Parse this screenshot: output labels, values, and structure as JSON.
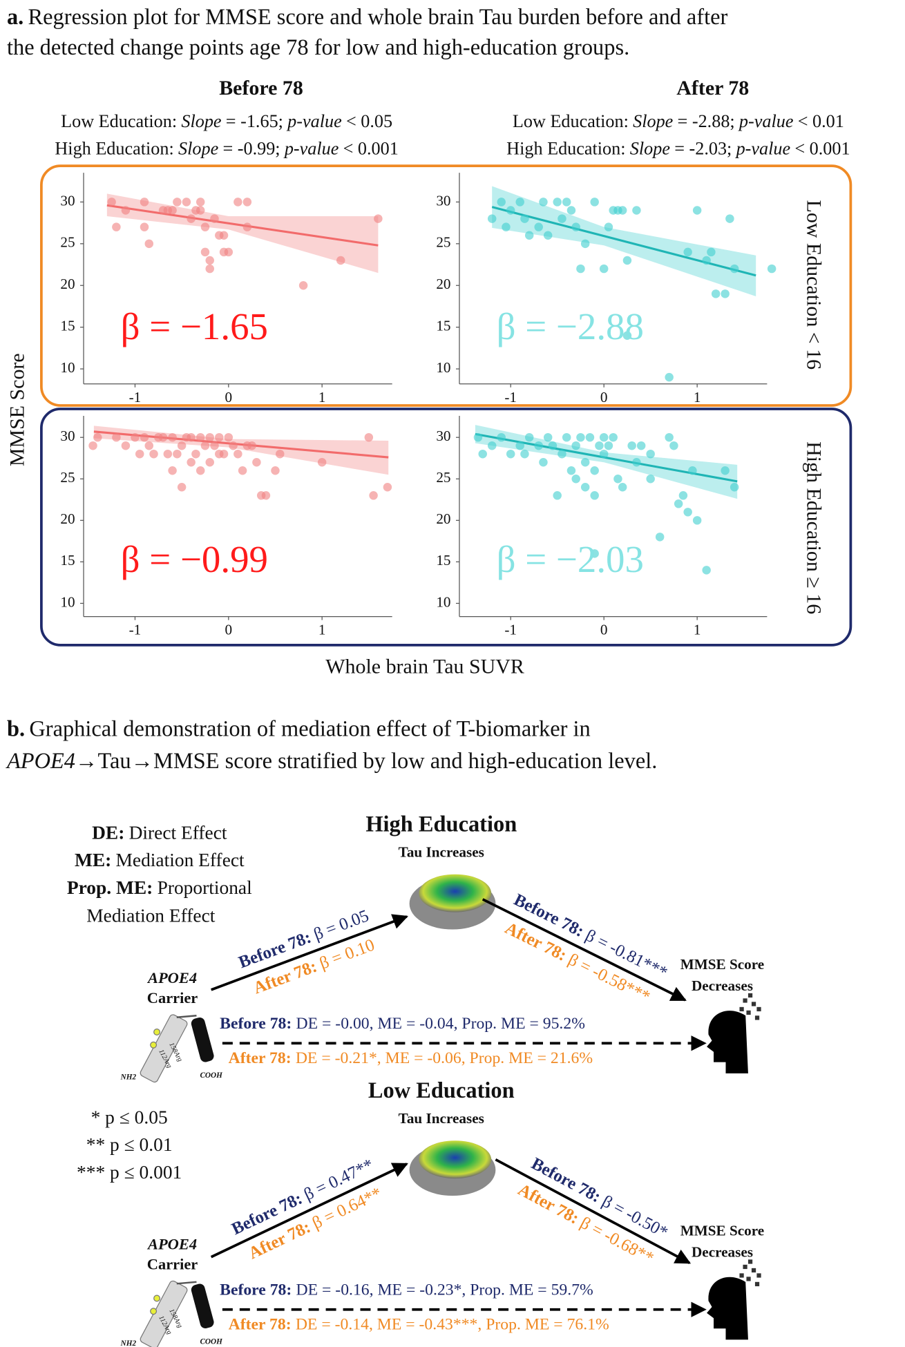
{
  "panel_a": {
    "label": "a.",
    "caption": [
      "Regression plot for MMSE score and whole brain Tau burden before and after",
      "the detected change points age 78 for low and high-education groups."
    ],
    "columns": [
      {
        "title": "Before 78",
        "stats": [
          [
            "Low Education:",
            "Slope",
            "= -1.65;",
            "p-value",
            "< 0.05"
          ],
          [
            "High Education:",
            "Slope",
            "= -0.99;",
            "p-value",
            "< 0.001"
          ]
        ]
      },
      {
        "title": "After 78",
        "stats": [
          [
            "Low Education:",
            "Slope",
            "= -2.88;",
            "p-value",
            "< 0.01"
          ],
          [
            "High Education:",
            "Slope",
            "= -2.03;",
            "p-value",
            "< 0.001"
          ]
        ]
      }
    ],
    "rows": [
      "Low Education < 16",
      "High Education ≥ 16"
    ],
    "y_label": "MMSE Score",
    "x_label": "Whole brain Tau SUVR"
  },
  "chart_data": [
    {
      "type": "scatter",
      "color": "#f08080",
      "line_color": "#f26b6b",
      "annotation": "β = −1.65",
      "annotation_color": "#ff1a1a",
      "xlim": [
        -1.55,
        1.75
      ],
      "ylim": [
        8.2,
        33.5
      ],
      "xticks": [
        -1,
        0,
        1
      ],
      "yticks": [
        10,
        15,
        20,
        25,
        30
      ],
      "x": [
        -1.25,
        -1.2,
        -1.1,
        -0.9,
        -0.9,
        -0.85,
        -0.7,
        -0.65,
        -0.6,
        -0.55,
        -0.45,
        -0.4,
        -0.35,
        -0.3,
        -0.3,
        -0.25,
        -0.25,
        -0.2,
        -0.2,
        -0.15,
        -0.1,
        -0.05,
        -0.05,
        0,
        0.1,
        0.2,
        0.2,
        0.8,
        1.2,
        1.6
      ],
      "values": [
        30,
        27,
        29,
        30,
        27,
        25,
        29,
        29,
        29,
        30,
        30,
        28,
        29,
        29,
        30,
        27,
        24,
        23,
        22,
        28,
        26,
        26,
        24,
        24,
        30,
        30,
        27,
        20,
        23,
        28
      ],
      "fit": {
        "x": [
          -1.3,
          1.6
        ],
        "values": [
          29.6,
          24.8
        ]
      },
      "band": {
        "x": [
          -1.3,
          0,
          1.6
        ],
        "lower": [
          28.3,
          26.7,
          21.5
        ],
        "upper": [
          31,
          28.3,
          28.3
        ]
      }
    },
    {
      "type": "scatter",
      "color": "#3fcfcf",
      "line_color": "#1fb5b5",
      "annotation": "β = −2.88",
      "annotation_color": "#86e3e3",
      "xlim": [
        -1.55,
        1.75
      ],
      "ylim": [
        8.2,
        33.5
      ],
      "xticks": [
        -1,
        0,
        1
      ],
      "yticks": [
        10,
        15,
        20,
        25,
        30
      ],
      "x": [
        -1.2,
        -1.1,
        -1.05,
        -1,
        -0.9,
        -0.85,
        -0.8,
        -0.7,
        -0.65,
        -0.6,
        -0.5,
        -0.45,
        -0.4,
        -0.35,
        -0.3,
        -0.25,
        -0.2,
        -0.1,
        0,
        0.05,
        0.1,
        0.15,
        0.2,
        0.25,
        0.25,
        0.35,
        0.7,
        0.9,
        1,
        1.1,
        1.15,
        1.2,
        1.3,
        1.35,
        1.4,
        1.8
      ],
      "values": [
        28,
        30,
        27,
        29,
        30,
        28,
        26,
        27,
        30,
        26,
        30,
        28,
        30,
        29,
        27,
        22,
        25,
        30,
        22,
        27,
        29,
        29,
        29,
        14,
        23,
        29,
        9,
        24,
        29,
        23,
        24,
        19,
        19,
        28,
        22,
        22
      ],
      "fit": {
        "x": [
          -1.2,
          1.63
        ],
        "values": [
          29.4,
          21.2
        ]
      },
      "band": {
        "x": [
          -1.2,
          0,
          1.63
        ],
        "lower": [
          26.9,
          24.8,
          18.7
        ],
        "upper": [
          31.9,
          27,
          23.6
        ]
      }
    },
    {
      "type": "scatter",
      "color": "#f08080",
      "line_color": "#f26b6b",
      "annotation": "β = −0.99",
      "annotation_color": "#ff1a1a",
      "xlim": [
        -1.55,
        1.75
      ],
      "ylim": [
        8.4,
        32.6
      ],
      "xticks": [
        -1,
        0,
        1
      ],
      "yticks": [
        10,
        15,
        20,
        25,
        30
      ],
      "x": [
        -1.45,
        -1.4,
        -1.2,
        -1.1,
        -1.0,
        -0.95,
        -0.9,
        -0.85,
        -0.8,
        -0.75,
        -0.7,
        -0.65,
        -0.6,
        -0.6,
        -0.55,
        -0.5,
        -0.5,
        -0.45,
        -0.4,
        -0.4,
        -0.35,
        -0.3,
        -0.3,
        -0.25,
        -0.2,
        -0.2,
        -0.15,
        -0.1,
        -0.1,
        -0.05,
        0,
        0.05,
        0.1,
        0.15,
        0.2,
        0.25,
        0.3,
        0.35,
        0.4,
        0.5,
        0.55,
        1.0,
        1.5,
        1.55,
        1.7
      ],
      "values": [
        29,
        30,
        30,
        29,
        30,
        28,
        30,
        29,
        28,
        30,
        30,
        28,
        30,
        26,
        28,
        29,
        24,
        30,
        30,
        27,
        28,
        30,
        26,
        29,
        30,
        27,
        29,
        28,
        30,
        28,
        30,
        29,
        28,
        26,
        29,
        29,
        27,
        23,
        23,
        26,
        28,
        27,
        30,
        23,
        24
      ],
      "fit": {
        "x": [
          -1.44,
          1.71
        ],
        "values": [
          30.7,
          27.6
        ]
      },
      "band": {
        "x": [
          -1.44,
          0,
          1.71
        ],
        "lower": [
          29.9,
          28.8,
          25.5
        ],
        "upper": [
          31.4,
          29.8,
          29.6
        ]
      }
    },
    {
      "type": "scatter",
      "color": "#3fcfcf",
      "line_color": "#1fb5b5",
      "annotation": "β = −2.03",
      "annotation_color": "#86e3e3",
      "xlim": [
        -1.55,
        1.75
      ],
      "ylim": [
        8.4,
        32.6
      ],
      "xticks": [
        -1,
        0,
        1
      ],
      "yticks": [
        10,
        15,
        20,
        25,
        30
      ],
      "x": [
        -1.35,
        -1.3,
        -1.2,
        -1.1,
        -1.0,
        -0.9,
        -0.85,
        -0.8,
        -0.7,
        -0.65,
        -0.6,
        -0.55,
        -0.5,
        -0.45,
        -0.4,
        -0.35,
        -0.3,
        -0.3,
        -0.25,
        -0.2,
        -0.2,
        -0.15,
        -0.1,
        -0.1,
        -0.05,
        0,
        0,
        0.05,
        0.1,
        0.15,
        0.2,
        0.3,
        0.35,
        0.4,
        0.5,
        0.6,
        0.7,
        0.75,
        0.8,
        0.85,
        0.9,
        0.95,
        1.0,
        1.1,
        1.3,
        1.4,
        -0.1,
        0.5
      ],
      "values": [
        30,
        28,
        29,
        30,
        28,
        29,
        28,
        30,
        29,
        27,
        30,
        29,
        23,
        28,
        30,
        26,
        29,
        25,
        30,
        27,
        24,
        30,
        26,
        16,
        29,
        30,
        28,
        29,
        30,
        25,
        24,
        29,
        27,
        29,
        28,
        18,
        30,
        29,
        22,
        23,
        21,
        26,
        20,
        14,
        26,
        24,
        23,
        25
      ],
      "fit": {
        "x": [
          -1.38,
          1.43
        ],
        "values": [
          30.4,
          24.7
        ]
      },
      "band": {
        "x": [
          -1.38,
          0,
          1.43
        ],
        "lower": [
          29.3,
          27,
          22.6
        ],
        "upper": [
          31.5,
          28.2,
          26.7
        ]
      }
    }
  ],
  "panel_b": {
    "label": "b.",
    "caption_line1": "Graphical  demonstration of mediation effect of T-biomarker in",
    "caption_line2": [
      "APOE4",
      "→Tau→MMSE  score stratified by low and high-education level."
    ],
    "legend": [
      [
        "DE:",
        "Direct Effect"
      ],
      [
        "ME:",
        "Mediation Effect"
      ],
      [
        "Prop. ME:",
        "Proportional"
      ]
    ],
    "legend_cont": "Mediation Effect",
    "significance": [
      "* p ≤ 0.05",
      "** p ≤ 0.01",
      "*** p ≤ 0.001"
    ],
    "groups": [
      {
        "title": "High Education",
        "subtitle": "Tau Increases",
        "source": [
          "APOE4",
          "Carrier"
        ],
        "target": [
          "MMSE Score",
          "Decreases"
        ],
        "protein_labels": [
          "NH2",
          "COOH",
          "158Arg",
          "112Arg"
        ],
        "to_tau": [
          [
            "Before 78:",
            "β = 0.05"
          ],
          [
            "After 78:",
            "β = 0.10"
          ]
        ],
        "to_mmse": [
          [
            "Before 78:",
            "β = -0.81***"
          ],
          [
            "After 78:",
            "β = -0.58***"
          ]
        ],
        "direct": [
          [
            "Before 78:",
            "DE = -0.00, ME = -0.04, Prop. ME = 95.2%"
          ],
          [
            "After 78:",
            "DE = -0.21*, ME = -0.06, Prop. ME = 21.6%"
          ]
        ]
      },
      {
        "title": "Low Education",
        "subtitle": "Tau Increases",
        "source": [
          "APOE4",
          "Carrier"
        ],
        "target": [
          "MMSE Score",
          "Decreases"
        ],
        "protein_labels": [
          "NH2",
          "COOH",
          "158Arg",
          "112Arg"
        ],
        "to_tau": [
          [
            "Before 78:",
            "β = 0.47**"
          ],
          [
            "After 78:",
            "β = 0.64**"
          ]
        ],
        "to_mmse": [
          [
            "Before 78:",
            "β = -0.50*"
          ],
          [
            "After 78:",
            "β = -0.68**"
          ]
        ],
        "direct": [
          [
            "Before 78:",
            "DE = -0.16, ME = -0.23*, Prop. ME = 59.7%"
          ],
          [
            "After 78:",
            "DE = -0.14, ME = -0.43***, Prop. ME = 76.1%"
          ]
        ]
      }
    ]
  }
}
